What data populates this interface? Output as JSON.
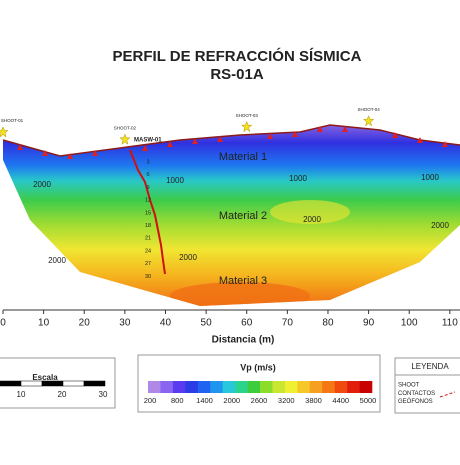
{
  "chart_data": {
    "type": "contour",
    "title": "PERFIL DE REFRACCIÓN SÍSMICA",
    "subtitle": "RS-01A",
    "x_label": "Distancia (m)",
    "xlim": [
      0,
      112.5
    ],
    "xticks": [
      0,
      10,
      20,
      30,
      40,
      50,
      60,
      70,
      80,
      90,
      100,
      110
    ],
    "shots": [
      {
        "label": "SHOOT-01",
        "x": 0
      },
      {
        "label": "SHOOT-02",
        "x": 30
      },
      {
        "label": "SHOOT-03",
        "x": 60
      },
      {
        "label": "SHOOT-04",
        "x": 90
      }
    ],
    "masw_label": "MASW-01",
    "masw_depths": [
      3,
      6,
      9,
      12,
      15,
      18,
      21,
      24,
      27,
      30
    ],
    "materials": [
      "Material 1",
      "Material 2",
      "Material 3"
    ],
    "contour_labels": [
      1000,
      1000,
      1000,
      2000,
      2000,
      2000,
      2000,
      2000
    ],
    "colorbar": {
      "title": "Vp (m/s)",
      "lim": [
        200,
        5000
      ],
      "ticks": [
        200,
        800,
        1400,
        2000,
        2600,
        3200,
        3800,
        4400,
        5000
      ],
      "colors": [
        "#b088e6",
        "#8a66f0",
        "#5a3cf0",
        "#2c3ce6",
        "#1e64f0",
        "#1e96f0",
        "#28c8dc",
        "#2ad48c",
        "#3ccc3c",
        "#8cdc2a",
        "#c8e632",
        "#f0f032",
        "#f5c828",
        "#f5a01e",
        "#f57814",
        "#f04b0f",
        "#e01e0a",
        "#c80000"
      ]
    },
    "scale_bar": {
      "title": "Escala",
      "ticks": [
        10,
        20,
        30
      ]
    },
    "legend": {
      "title": "LEYENDA",
      "items": [
        "SHOOT",
        "CONTACTOS GEÓFONOS"
      ]
    }
  }
}
